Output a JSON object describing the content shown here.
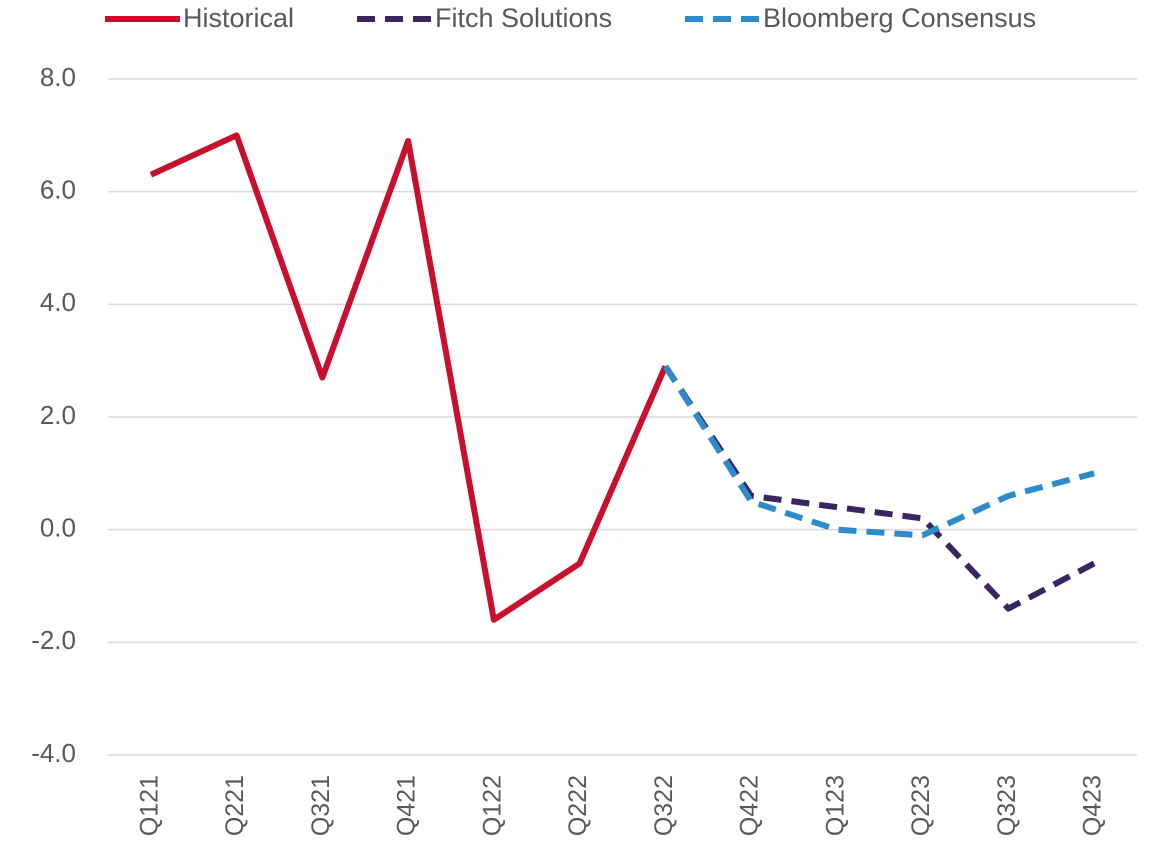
{
  "chart_data": {
    "type": "line",
    "categories": [
      "Q121",
      "Q221",
      "Q321",
      "Q421",
      "Q122",
      "Q222",
      "Q322",
      "Q422",
      "Q123",
      "Q223",
      "Q323",
      "Q423"
    ],
    "series": [
      {
        "name": "Historical",
        "color": "#c8102e",
        "dashed": false,
        "values": [
          6.3,
          7.0,
          2.7,
          6.9,
          -1.6,
          -0.6,
          2.9,
          null,
          null,
          null,
          null,
          null
        ]
      },
      {
        "name": "Fitch Solutions",
        "color": "#3b2561",
        "dashed": true,
        "values": [
          null,
          null,
          null,
          null,
          null,
          null,
          2.9,
          0.6,
          0.4,
          0.2,
          -1.4,
          -0.6
        ]
      },
      {
        "name": "Bloomberg Consensus",
        "color": "#2e8bc9",
        "dashed": true,
        "values": [
          null,
          null,
          null,
          null,
          null,
          null,
          2.9,
          0.5,
          0.0,
          -0.1,
          0.6,
          1.0
        ]
      }
    ],
    "ylim": [
      -4,
      8
    ],
    "yticks": [
      {
        "value": -4,
        "label": "-4.0"
      },
      {
        "value": -2,
        "label": "-2.0"
      },
      {
        "value": 0,
        "label": "0.0"
      },
      {
        "value": 2,
        "label": "2.0"
      },
      {
        "value": 4,
        "label": "4.0"
      },
      {
        "value": 6,
        "label": "6.0"
      },
      {
        "value": 8,
        "label": "8.0"
      }
    ],
    "grid": true
  }
}
